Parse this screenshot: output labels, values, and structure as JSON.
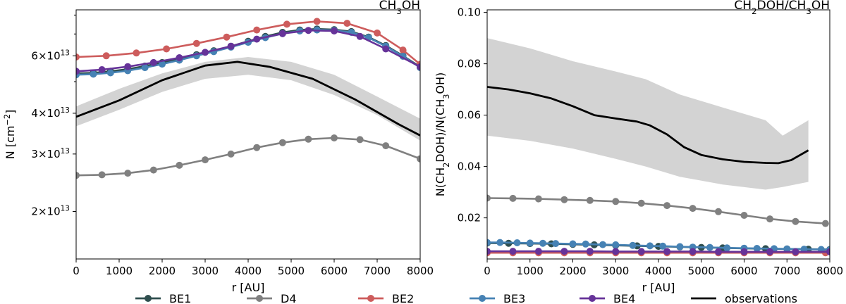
{
  "colors": {
    "BE1": "#2f4f4f",
    "D4": "#808080",
    "BE2": "#cd5c5c",
    "BE3": "#4682b4",
    "BE4": "#663399",
    "obs": "#000000",
    "band": "#d3d3d3"
  },
  "legend": [
    {
      "key": "BE1",
      "label": "BE1"
    },
    {
      "key": "D4",
      "label": "D4"
    },
    {
      "key": "BE2",
      "label": "BE2"
    },
    {
      "key": "BE3",
      "label": "BE3"
    },
    {
      "key": "BE4",
      "label": "BE4"
    },
    {
      "key": "obs",
      "label": "observations",
      "line_only": true
    }
  ],
  "chart_data": [
    {
      "type": "line",
      "title_parts": [
        {
          "t": "CH"
        },
        {
          "t": "3",
          "sub": true
        },
        {
          "t": "OH"
        }
      ],
      "xlabel": "r [AU]",
      "ylabel_parts": [
        {
          "t": "N [cm"
        },
        {
          "t": "−2",
          "sup": true
        },
        {
          "t": "]"
        }
      ],
      "yscale": "log",
      "xlim": [
        0,
        8000
      ],
      "ylim": [
        14300000000000.0,
        83000000000000.0
      ],
      "xticks": [
        0,
        1000,
        2000,
        3000,
        4000,
        5000,
        6000,
        7000,
        8000
      ],
      "yticks": [
        {
          "v": 20000000000000.0,
          "m": "2",
          "e": "13"
        },
        {
          "v": 30000000000000.0,
          "m": "3",
          "e": "13"
        },
        {
          "v": 40000000000000.0,
          "m": "4",
          "e": "13"
        },
        {
          "v": 60000000000000.0,
          "m": "6",
          "e": "13"
        }
      ],
      "yminor": [
        50000000000000.0,
        70000000000000.0,
        80000000000000.0
      ],
      "band": {
        "x": [
          0,
          1000,
          2000,
          3000,
          4000,
          5000,
          6000,
          7000,
          8000
        ],
        "upper": [
          42000000000000.0,
          47500000000000.0,
          53000000000000.0,
          57500000000000.0,
          59500000000000.0,
          57500000000000.0,
          52500000000000.0,
          45000000000000.0,
          38500000000000.0
        ],
        "lower": [
          36500000000000.0,
          41000000000000.0,
          46500000000000.0,
          51000000000000.0,
          52500000000000.0,
          50500000000000.0,
          45500000000000.0,
          39500000000000.0,
          33000000000000.0
        ]
      },
      "observations": {
        "x": [
          0,
          1000,
          2000,
          3000,
          3750,
          4500,
          5500,
          6500,
          7500,
          8000
        ],
        "y": [
          39000000000000.0,
          43800000000000.0,
          50500000000000.0,
          56000000000000.0,
          57500000000000.0,
          55500000000000.0,
          51000000000000.0,
          44000000000000.0,
          37000000000000.0,
          34200000000000.0
        ]
      },
      "series": [
        {
          "name": "BE1",
          "key": "BE1",
          "x": [
            0,
            400,
            800,
            1200,
            1600,
            2000,
            2400,
            2800,
            3200,
            3600,
            4000,
            4400,
            4800,
            5200,
            5600,
            6000,
            6400,
            6800,
            7200,
            7600,
            8000
          ],
          "y": [
            53000000000000.0,
            53200000000000.0,
            53800000000000.0,
            54600000000000.0,
            55800000000000.0,
            57200000000000.0,
            58800000000000.0,
            60500000000000.0,
            62200000000000.0,
            64200000000000.0,
            66500000000000.0,
            68800000000000.0,
            70800000000000.0,
            72000000000000.0,
            72500000000000.0,
            72200000000000.0,
            71200000000000.0,
            68500000000000.0,
            64500000000000.0,
            60000000000000.0,
            55500000000000.0
          ]
        },
        {
          "name": "D4",
          "key": "D4",
          "x": [
            0,
            600,
            1200,
            1800,
            2400,
            3000,
            3600,
            4200,
            4800,
            5400,
            6000,
            6600,
            7200,
            8000
          ],
          "y": [
            25800000000000.0,
            25900000000000.0,
            26200000000000.0,
            26800000000000.0,
            27700000000000.0,
            28800000000000.0,
            30000000000000.0,
            31400000000000.0,
            32500000000000.0,
            33300000000000.0,
            33600000000000.0,
            33200000000000.0,
            31800000000000.0,
            29000000000000.0
          ]
        },
        {
          "name": "BE2",
          "key": "BE2",
          "x": [
            0,
            700,
            1400,
            2100,
            2800,
            3500,
            4200,
            4900,
            5600,
            6300,
            7000,
            7600,
            8000
          ],
          "y": [
            59500000000000.0,
            60000000000000.0,
            61200000000000.0,
            63000000000000.0,
            65500000000000.0,
            68500000000000.0,
            72000000000000.0,
            75000000000000.0,
            76500000000000.0,
            75500000000000.0,
            70500000000000.0,
            62500000000000.0,
            56500000000000.0
          ]
        },
        {
          "name": "BE3",
          "key": "BE3",
          "x": [
            0,
            400,
            800,
            1200,
            1600,
            2000,
            2400,
            2800,
            3200,
            3600,
            4000,
            4400,
            4800,
            5200,
            5600,
            6000,
            6400,
            6800,
            7200,
            7600,
            8000
          ],
          "y": [
            52500000000000.0,
            52700000000000.0,
            53200000000000.0,
            54000000000000.0,
            55200000000000.0,
            56600000000000.0,
            58200000000000.0,
            60000000000000.0,
            61800000000000.0,
            63800000000000.0,
            66000000000000.0,
            68200000000000.0,
            70200000000000.0,
            71500000000000.0,
            72000000000000.0,
            71800000000000.0,
            70800000000000.0,
            68200000000000.0,
            64200000000000.0,
            59800000000000.0,
            55200000000000.0
          ]
        },
        {
          "name": "BE4",
          "key": "BE4",
          "x": [
            0,
            600,
            1200,
            1800,
            2400,
            3000,
            3600,
            4200,
            4800,
            5400,
            6000,
            6600,
            7200,
            8000
          ],
          "y": [
            53800000000000.0,
            54400000000000.0,
            55600000000000.0,
            57200000000000.0,
            59200000000000.0,
            61500000000000.0,
            64200000000000.0,
            67500000000000.0,
            70200000000000.0,
            71800000000000.0,
            71500000000000.0,
            68800000000000.0,
            63000000000000.0,
            55500000000000.0
          ]
        }
      ]
    },
    {
      "type": "line",
      "title_parts": [
        {
          "t": "CH"
        },
        {
          "t": "2",
          "sub": true
        },
        {
          "t": "DOH/CH"
        },
        {
          "t": "3",
          "sub": true
        },
        {
          "t": "OH"
        }
      ],
      "xlabel": "r [AU]",
      "ylabel_parts": [
        {
          "t": "N(CH"
        },
        {
          "t": "2",
          "sub": true
        },
        {
          "t": "DOH)/N(CH"
        },
        {
          "t": "3",
          "sub": true
        },
        {
          "t": "OH)"
        }
      ],
      "yscale": "linear",
      "xlim": [
        0,
        8000
      ],
      "ylim": [
        0.004,
        0.101
      ],
      "xticks": [
        0,
        1000,
        2000,
        3000,
        4000,
        5000,
        6000,
        7000,
        8000
      ],
      "yticks": [
        {
          "v": 0.02,
          "label": "0.02"
        },
        {
          "v": 0.04,
          "label": "0.04"
        },
        {
          "v": 0.06,
          "label": "0.06"
        },
        {
          "v": 0.08,
          "label": "0.08"
        },
        {
          "v": 0.1,
          "label": "0.10"
        }
      ],
      "band": {
        "x": [
          0,
          1000,
          2000,
          3000,
          3700,
          4500,
          5500,
          6500,
          6900,
          7500
        ],
        "upper": [
          0.09,
          0.086,
          0.081,
          0.077,
          0.074,
          0.068,
          0.063,
          0.058,
          0.052,
          0.058
        ],
        "lower": [
          0.052,
          0.05,
          0.047,
          0.043,
          0.04,
          0.036,
          0.033,
          0.031,
          0.032,
          0.034
        ]
      },
      "observations": {
        "x": [
          0,
          500,
          1000,
          1500,
          2000,
          2500,
          3000,
          3500,
          3800,
          4200,
          4600,
          5000,
          5500,
          6000,
          6500,
          6800,
          7100,
          7500
        ],
        "y": [
          0.071,
          0.07,
          0.0685,
          0.0665,
          0.0635,
          0.06,
          0.0587,
          0.0575,
          0.056,
          0.0525,
          0.0475,
          0.0445,
          0.0428,
          0.0418,
          0.0414,
          0.0413,
          0.0425,
          0.0463
        ]
      },
      "series": [
        {
          "name": "BE1",
          "key": "BE1",
          "x": [
            0,
            500,
            1000,
            1500,
            2000,
            2500,
            3000,
            3500,
            4000,
            4500,
            5000,
            5500,
            6000,
            6500,
            7000,
            7500,
            8000
          ],
          "y": [
            0.0102,
            0.0101,
            0.01,
            0.0099,
            0.0097,
            0.0095,
            0.0093,
            0.0091,
            0.0089,
            0.0087,
            0.0085,
            0.0083,
            0.0081,
            0.008,
            0.0079,
            0.0078,
            0.0077
          ]
        },
        {
          "name": "D4",
          "key": "D4",
          "x": [
            0,
            600,
            1200,
            1800,
            2400,
            3000,
            3600,
            4200,
            4800,
            5400,
            6000,
            6600,
            7200,
            7900
          ],
          "y": [
            0.0277,
            0.0276,
            0.0274,
            0.0271,
            0.0268,
            0.0264,
            0.0257,
            0.0248,
            0.0237,
            0.0224,
            0.021,
            0.0196,
            0.0186,
            0.0178
          ]
        },
        {
          "name": "BE2",
          "key": "BE2",
          "x": [
            0,
            600,
            1200,
            1800,
            2400,
            3000,
            3600,
            4200,
            4800,
            5400,
            6000,
            6600,
            7200,
            7900
          ],
          "y": [
            0.0064,
            0.0064,
            0.0064,
            0.0064,
            0.0064,
            0.0064,
            0.0064,
            0.0064,
            0.0064,
            0.0064,
            0.0064,
            0.0064,
            0.0064,
            0.0064
          ]
        },
        {
          "name": "BE3",
          "key": "BE3",
          "x": [
            0,
            300,
            700,
            1000,
            1300,
            1600,
            2000,
            2300,
            2700,
            3000,
            3400,
            3800,
            4100,
            4500,
            4800,
            5200,
            5600,
            6000,
            6300,
            6700,
            7000,
            7400,
            7800,
            8000
          ],
          "y": [
            0.0104,
            0.0104,
            0.0103,
            0.0102,
            0.0101,
            0.01,
            0.0099,
            0.0098,
            0.0096,
            0.0095,
            0.0093,
            0.0091,
            0.009,
            0.0088,
            0.0086,
            0.0085,
            0.0083,
            0.0082,
            0.0081,
            0.008,
            0.0079,
            0.0078,
            0.0077,
            0.0076
          ]
        },
        {
          "name": "BE4",
          "key": "BE4",
          "x": [
            0,
            600,
            1200,
            1800,
            2400,
            3000,
            3600,
            4200,
            4800,
            5400,
            6000,
            6600,
            7200,
            8000
          ],
          "y": [
            0.007,
            0.007,
            0.007,
            0.007,
            0.007,
            0.0069,
            0.0069,
            0.0069,
            0.0069,
            0.0068,
            0.0068,
            0.0068,
            0.0068,
            0.0068
          ]
        }
      ]
    }
  ]
}
